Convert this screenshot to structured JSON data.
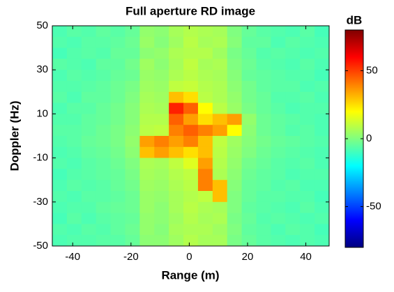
{
  "chart_data": {
    "type": "heatmap",
    "title": "Full aperture RD image",
    "x_label": "Range (m)",
    "y_label": "Doppler (Hz)",
    "colorbar_label": "dB",
    "colormap": "jet",
    "x": [
      -44.5,
      -39.5,
      -34.5,
      -29.5,
      -24.5,
      -19.5,
      -14.5,
      -9.5,
      -4.5,
      0.5,
      5.5,
      10.5,
      15.5,
      20.5,
      25.5,
      30.5,
      35.5,
      40.5,
      45.5
    ],
    "y": [
      47.5,
      42.5,
      37.5,
      32.5,
      27.5,
      22.5,
      17.5,
      12.5,
      7.5,
      2.5,
      -2.5,
      -7.5,
      -12.5,
      -17.5,
      -22.5,
      -27.5,
      -32.5,
      -37.5,
      -42.5,
      -47.5
    ],
    "z": [
      [
        -8,
        -6,
        -7,
        -5,
        -6,
        -4,
        3,
        2,
        6,
        8,
        7,
        6,
        0,
        -4,
        -6,
        -7,
        -8,
        -6,
        -9
      ],
      [
        -7,
        -8,
        -6,
        -6,
        -5,
        -3,
        4,
        1,
        5,
        9,
        6,
        7,
        1,
        -5,
        -5,
        -8,
        -6,
        -7,
        -8
      ],
      [
        -9,
        -7,
        -6,
        -7,
        -4,
        -4,
        2,
        3,
        7,
        8,
        8,
        5,
        -1,
        -4,
        -7,
        -6,
        -7,
        -8,
        -7
      ],
      [
        -6,
        -7,
        -8,
        -5,
        -5,
        -2,
        5,
        2,
        6,
        10,
        6,
        7,
        0,
        -3,
        -6,
        -7,
        -8,
        -6,
        -8
      ],
      [
        -8,
        -6,
        -7,
        -6,
        -4,
        -3,
        4,
        3,
        7,
        9,
        7,
        6,
        1,
        -4,
        -5,
        -6,
        -7,
        -7,
        -9
      ],
      [
        -7,
        -7,
        -6,
        -5,
        -3,
        -1,
        5,
        4,
        10,
        11,
        8,
        7,
        2,
        -2,
        -5,
        -6,
        -6,
        -8,
        -7
      ],
      [
        -6,
        -8,
        -5,
        -5,
        -3,
        0,
        6,
        5,
        30,
        25,
        9,
        7,
        3,
        -2,
        -4,
        -7,
        -7,
        -6,
        -8
      ],
      [
        -8,
        -6,
        -6,
        -4,
        -2,
        1,
        7,
        6,
        55,
        45,
        20,
        9,
        4,
        -1,
        -4,
        -6,
        -8,
        -7,
        -7
      ],
      [
        -7,
        -7,
        -5,
        -4,
        -2,
        1,
        8,
        8,
        45,
        35,
        25,
        30,
        35,
        3,
        -3,
        -5,
        -6,
        -7,
        -8
      ],
      [
        -6,
        -6,
        -5,
        -3,
        -1,
        2,
        9,
        10,
        40,
        45,
        40,
        35,
        20,
        2,
        -3,
        -5,
        -7,
        -6,
        -8
      ],
      [
        -7,
        -6,
        -4,
        -3,
        -1,
        3,
        35,
        40,
        35,
        40,
        30,
        10,
        5,
        1,
        -2,
        -4,
        -5,
        -6,
        -7
      ],
      [
        -8,
        -7,
        -5,
        -4,
        -2,
        2,
        30,
        35,
        30,
        25,
        30,
        9,
        4,
        0,
        -3,
        -5,
        -6,
        -7,
        -8
      ],
      [
        -7,
        -8,
        -6,
        -5,
        -3,
        0,
        7,
        6,
        10,
        15,
        35,
        8,
        3,
        -2,
        -4,
        -6,
        -7,
        -6,
        -8
      ],
      [
        -9,
        -7,
        -6,
        -5,
        -4,
        -1,
        6,
        5,
        8,
        10,
        40,
        7,
        2,
        -3,
        -5,
        -6,
        -8,
        -7,
        -7
      ],
      [
        -8,
        -6,
        -7,
        -6,
        -4,
        -2,
        5,
        4,
        7,
        9,
        40,
        30,
        1,
        -4,
        -5,
        -7,
        -6,
        -8,
        -8
      ],
      [
        -7,
        -8,
        -6,
        -6,
        -5,
        -3,
        4,
        3,
        6,
        8,
        10,
        30,
        0,
        -4,
        -6,
        -6,
        -7,
        -7,
        -9
      ],
      [
        -8,
        -7,
        -7,
        -5,
        -4,
        -3,
        4,
        2,
        6,
        9,
        7,
        6,
        0,
        -5,
        -6,
        -7,
        -8,
        -6,
        -8
      ],
      [
        -9,
        -6,
        -8,
        -6,
        -5,
        -4,
        3,
        2,
        5,
        8,
        6,
        7,
        -1,
        -4,
        -7,
        -6,
        -7,
        -8,
        -7
      ],
      [
        -7,
        -8,
        -6,
        -7,
        -5,
        -3,
        3,
        1,
        6,
        7,
        7,
        5,
        0,
        -5,
        -6,
        -8,
        -6,
        -7,
        -9
      ],
      [
        -8,
        -7,
        -7,
        -6,
        -6,
        -4,
        2,
        2,
        5,
        8,
        6,
        6,
        -1,
        -4,
        -6,
        -7,
        -8,
        -7,
        -8
      ]
    ],
    "xlim": [
      -47,
      48
    ],
    "ylim": [
      -50,
      50
    ],
    "xticks": [
      -40,
      -20,
      0,
      20,
      40
    ],
    "yticks": [
      -50,
      -30,
      -10,
      10,
      30,
      50
    ],
    "clim": [
      -80,
      80
    ],
    "cticks": [
      -50,
      0,
      50
    ]
  }
}
